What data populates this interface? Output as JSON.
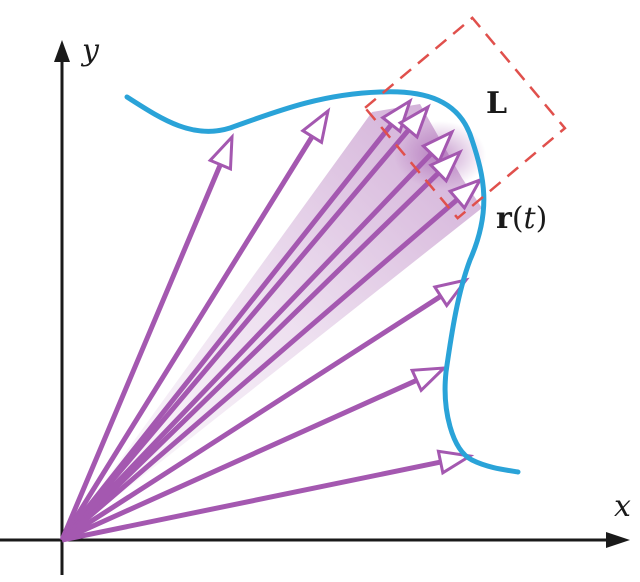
{
  "labels": {
    "x_axis": "x",
    "y_axis": "y",
    "window_label": "L",
    "curve_label_bold": "r",
    "curve_label_arg_open": "(",
    "curve_label_arg": "t",
    "curve_label_arg_close": ")"
  },
  "colors": {
    "curve": "#2aa3d8",
    "vectors": "#a458b0",
    "window": "#e0504c",
    "axes": "#1a1a1a",
    "shading": "#9c4fa8"
  },
  "icons": {
    "axis_arrowheads": "solid-triangle",
    "vector_arrowheads": "open-triangle"
  },
  "vector_count": 10
}
